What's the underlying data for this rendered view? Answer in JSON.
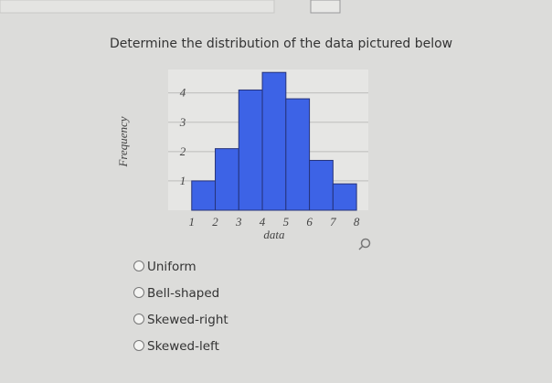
{
  "question": "Determine the distribution of the data pictured below",
  "chart_data": {
    "type": "histogram",
    "x_label": "data",
    "y_label": "Frequency",
    "bins": [
      1,
      2,
      3,
      4,
      5,
      6,
      7,
      8
    ],
    "values": [
      1,
      2.1,
      4.1,
      4.7,
      3.8,
      1.7,
      0.9
    ],
    "color": "#3d63e6",
    "xlim": [
      0,
      8.5
    ],
    "xticks": [
      1,
      2,
      3,
      4,
      5,
      6,
      7,
      8
    ],
    "ylim": [
      0,
      4.8
    ],
    "yticks": [
      1,
      2,
      3,
      4
    ],
    "grid": true
  },
  "options": [
    "Uniform",
    "Bell-shaped",
    "Skewed-right",
    "Skewed-left"
  ]
}
